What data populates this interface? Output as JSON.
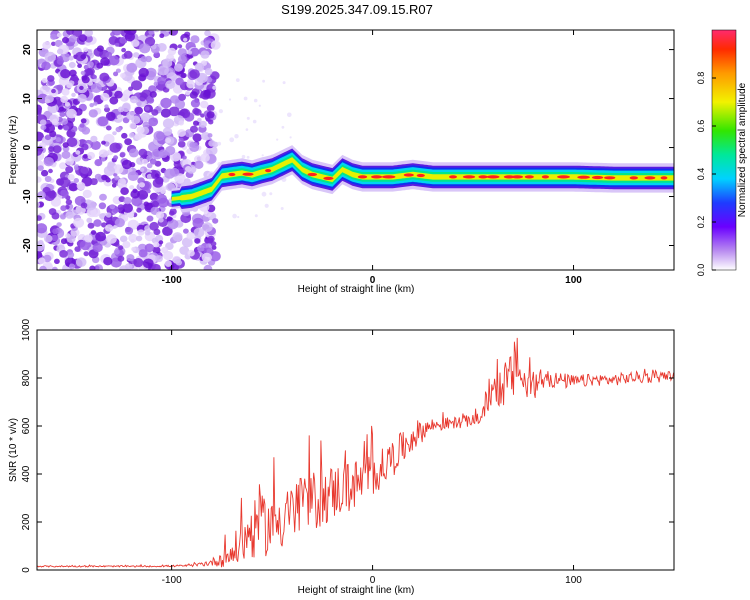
{
  "title": "S199.2025.347.09.15.R07",
  "colors": {
    "snr_line": "#e8392f",
    "scatter_purple": "#7a2bd9",
    "frame": "#000000"
  },
  "chart_data": [
    {
      "type": "heatmap",
      "title": "S199.2025.347.09.15.R07",
      "xlabel": "Height of straight line (km)",
      "ylabel": "Frequency (Hz)",
      "xlim": [
        -167,
        150
      ],
      "ylim": [
        -25,
        24
      ],
      "x_ticks": [
        -100,
        0,
        100
      ],
      "x_tick_labels": [
        "-100",
        "0",
        "100"
      ],
      "y_ticks": [
        20,
        10,
        0,
        -10,
        -20
      ],
      "y_tick_labels": [
        "20",
        "10",
        "0",
        "-10",
        "-20"
      ],
      "colorbar": {
        "label": "Normalized spectral amplitude",
        "range": [
          0.0,
          1.0
        ],
        "ticks": [
          0.0,
          0.2,
          0.4,
          0.6,
          0.8
        ],
        "tick_labels": [
          "0.0",
          "0.2",
          "0.4",
          "0.6",
          "0.8"
        ]
      },
      "ridge": {
        "description_series": "peak frequency vs height",
        "x": [
          -100,
          -90,
          -80,
          -75,
          -70,
          -65,
          -60,
          -55,
          -50,
          -45,
          -40,
          -35,
          -30,
          -25,
          -20,
          -15,
          -10,
          -5,
          0,
          10,
          20,
          30,
          40,
          60,
          80,
          100,
          120,
          150
        ],
        "y": [
          -10.5,
          -10,
          -8.5,
          -5.8,
          -5.5,
          -5.2,
          -5.6,
          -5,
          -4.5,
          -3.5,
          -2.5,
          -4.5,
          -5.5,
          -6,
          -6.5,
          -4.5,
          -5.5,
          -6,
          -6,
          -6,
          -5.5,
          -6,
          -6,
          -6,
          -6,
          -6,
          -6.2,
          -6.2
        ]
      }
    },
    {
      "type": "line",
      "xlabel": "Height of straight line (km)",
      "ylabel": "SNR (10 * v/v)",
      "xlim": [
        -167,
        150
      ],
      "ylim": [
        0,
        1000
      ],
      "x_ticks": [
        -100,
        0,
        100
      ],
      "x_tick_labels": [
        "-100",
        "0",
        "100"
      ],
      "y_ticks": [
        0,
        200,
        400,
        600,
        800,
        1000
      ],
      "y_tick_labels": [
        "0",
        "200",
        "400",
        "600",
        "800",
        "1000"
      ],
      "series": [
        {
          "name": "SNR",
          "x": [
            -167,
            -140,
            -110,
            -90,
            -80,
            -70,
            -65,
            -60,
            -55,
            -50,
            -45,
            -40,
            -35,
            -30,
            -25,
            -20,
            -15,
            -10,
            -5,
            0,
            5,
            10,
            15,
            20,
            25,
            30,
            40,
            50,
            55,
            58,
            60,
            65,
            70,
            72,
            75,
            80,
            85,
            90,
            100,
            110,
            120,
            130,
            140,
            150
          ],
          "values": [
            15,
            15,
            15,
            18,
            30,
            60,
            110,
            150,
            170,
            180,
            210,
            230,
            250,
            270,
            290,
            310,
            330,
            340,
            360,
            390,
            420,
            460,
            500,
            550,
            580,
            600,
            610,
            620,
            640,
            720,
            740,
            760,
            800,
            880,
            760,
            760,
            790,
            790,
            780,
            790,
            790,
            800,
            800,
            810
          ],
          "noise": [
            3,
            3,
            3,
            4,
            15,
            60,
            100,
            120,
            130,
            130,
            140,
            130,
            130,
            130,
            120,
            120,
            110,
            110,
            100,
            100,
            80,
            80,
            70,
            60,
            50,
            30,
            25,
            25,
            30,
            60,
            80,
            90,
            110,
            140,
            100,
            60,
            40,
            35,
            30,
            25,
            25,
            25,
            25,
            20
          ]
        }
      ]
    }
  ]
}
